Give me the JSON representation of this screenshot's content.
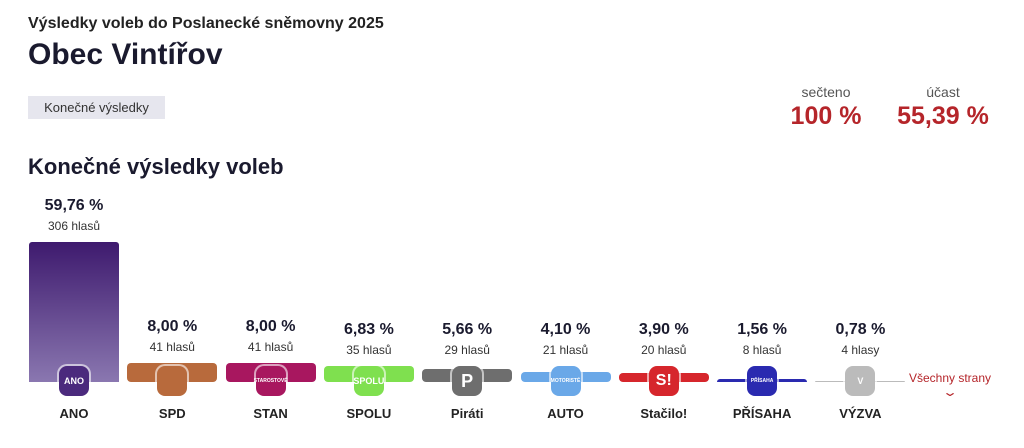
{
  "header": {
    "subtitle": "Výsledky voleb do Poslanecké sněmovny 2025",
    "title": "Obec Vintířov",
    "badge": "Konečné výsledky"
  },
  "stats": {
    "counted_label": "sečteno",
    "counted_value": "100 %",
    "turnout_label": "účast",
    "turnout_value": "55,39 %"
  },
  "section_title": "Konečné výsledky voleb",
  "all_parties_link": "Všechny strany",
  "chart_data": {
    "type": "bar",
    "title": "Konečné výsledky voleb",
    "ylim": [
      0,
      60
    ],
    "categories": [
      "ANO",
      "SPD",
      "STAN",
      "SPOLU",
      "Piráti",
      "AUTO",
      "Stačilo!",
      "PŘÍSAHA",
      "VÝZVA"
    ],
    "values": [
      59.76,
      8.0,
      8.0,
      6.83,
      5.66,
      4.1,
      3.9,
      1.56,
      0.78
    ],
    "value_labels": [
      "59,76 %",
      "8,00 %",
      "8,00 %",
      "6,83 %",
      "5,66 %",
      "4,10 %",
      "3,90 %",
      "1,56 %",
      "0,78 %"
    ],
    "votes": [
      "306 hlasů",
      "41 hlasů",
      "41 hlasů",
      "35 hlasů",
      "29 hlasů",
      "21 hlasů",
      "20 hlasů",
      "8 hlasů",
      "4 hlasy"
    ],
    "logos": [
      "ANO",
      "",
      "STAROSTOVÉ",
      "SPOLU",
      "P",
      "MOTORISTÉ",
      "S!",
      "PŘÍSAHA",
      "V"
    ],
    "colors": [
      "#4b2a7d",
      "#b86a3c",
      "#a8175f",
      "#7fe04f",
      "#6e6e6e",
      "#6aa8e8",
      "#d6262c",
      "#2a2ab0",
      "#bbbbbb"
    ]
  }
}
